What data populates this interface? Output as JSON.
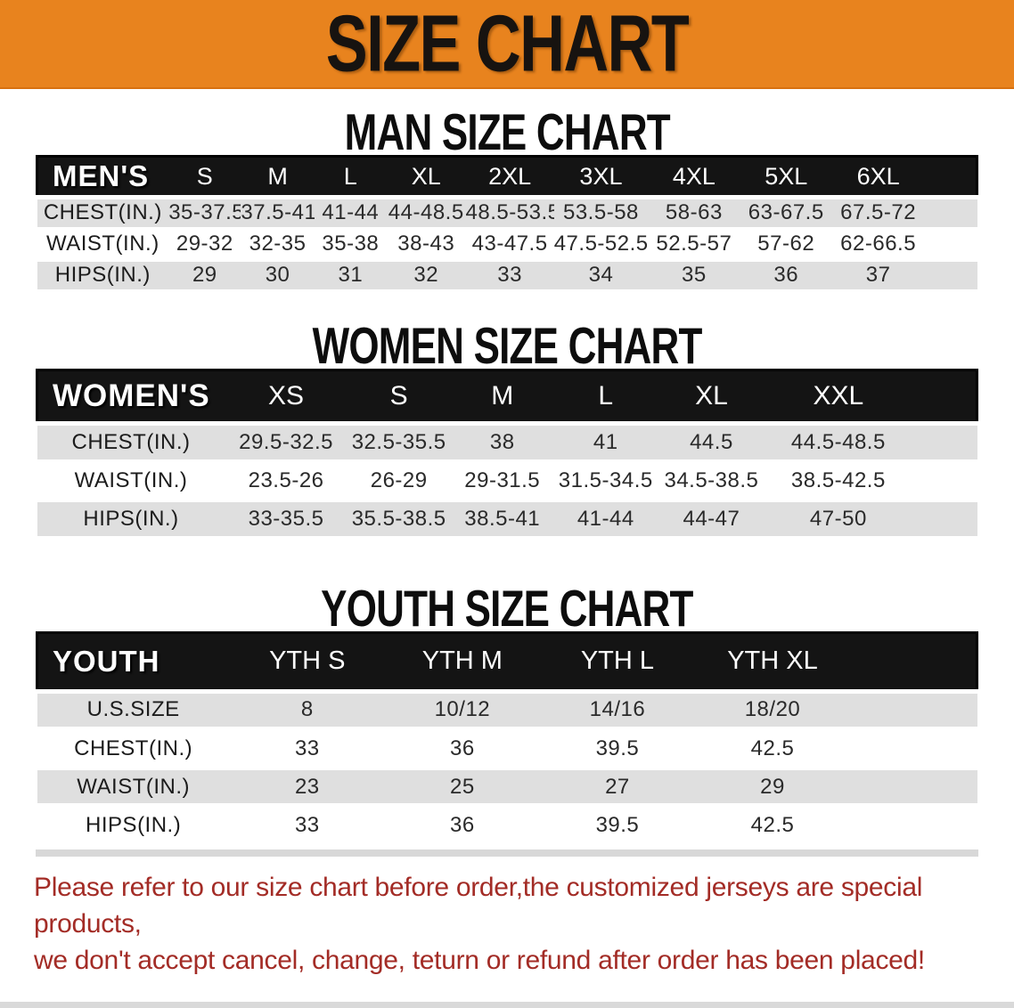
{
  "banner": {
    "title": "SIZE CHART"
  },
  "colors": {
    "banner_orange": "#E8831E",
    "header_bar_black": "#141414",
    "row_gray": "#DFDFDF",
    "footer_red": "#A32C26"
  },
  "sections": [
    {
      "heading": "MAN SIZE CHART",
      "table": {
        "header_label": "MEN'S",
        "columns": [
          "S",
          "M",
          "L",
          "XL",
          "2XL",
          "3XL",
          "4XL",
          "5XL",
          "6XL"
        ],
        "rows": [
          {
            "label": "CHEST(IN.)",
            "values": [
              "35-37.5",
              "37.5-41",
              "41-44",
              "44-48.5",
              "48.5-53.5",
              "53.5-58",
              "58-63",
              "63-67.5",
              "67.5-72"
            ]
          },
          {
            "label": "WAIST(IN.)",
            "values": [
              "29-32",
              "32-35",
              "35-38",
              "38-43",
              "43-47.5",
              "47.5-52.5",
              "52.5-57",
              "57-62",
              "62-66.5"
            ]
          },
          {
            "label": "HIPS(IN.)",
            "values": [
              "29",
              "30",
              "31",
              "32",
              "33",
              "34",
              "35",
              "36",
              "37"
            ]
          }
        ]
      }
    },
    {
      "heading": "WOMEN SIZE CHART",
      "table": {
        "header_label": "WOMEN'S",
        "columns": [
          "XS",
          "S",
          "M",
          "L",
          "XL",
          "XXL"
        ],
        "rows": [
          {
            "label": "CHEST(IN.)",
            "values": [
              "29.5-32.5",
              "32.5-35.5",
              "38",
              "41",
              "44.5",
              "44.5-48.5"
            ]
          },
          {
            "label": "WAIST(IN.)",
            "values": [
              "23.5-26",
              "26-29",
              "29-31.5",
              "31.5-34.5",
              "34.5-38.5",
              "38.5-42.5"
            ]
          },
          {
            "label": "HIPS(IN.)",
            "values": [
              "33-35.5",
              "35.5-38.5",
              "38.5-41",
              "41-44",
              "44-47",
              "47-50"
            ]
          }
        ]
      }
    },
    {
      "heading": "YOUTH SIZE CHART",
      "table": {
        "header_label": "YOUTH",
        "columns": [
          "YTH S",
          "YTH M",
          "YTH L",
          "YTH XL"
        ],
        "rows": [
          {
            "label": "U.S.SIZE",
            "values": [
              "8",
              "10/12",
              "14/16",
              "18/20"
            ]
          },
          {
            "label": "CHEST(IN.)",
            "values": [
              "33",
              "36",
              "39.5",
              "42.5"
            ]
          },
          {
            "label": "WAIST(IN.)",
            "values": [
              "23",
              "25",
              "27",
              "29"
            ]
          },
          {
            "label": "HIPS(IN.)",
            "values": [
              "33",
              "36",
              "39.5",
              "42.5"
            ]
          }
        ]
      }
    }
  ],
  "footer": {
    "line1": "Please refer to our size chart before order,the customized jerseys are special products,",
    "line2": "we don't accept cancel, change, teturn or refund after order has been placed!"
  }
}
